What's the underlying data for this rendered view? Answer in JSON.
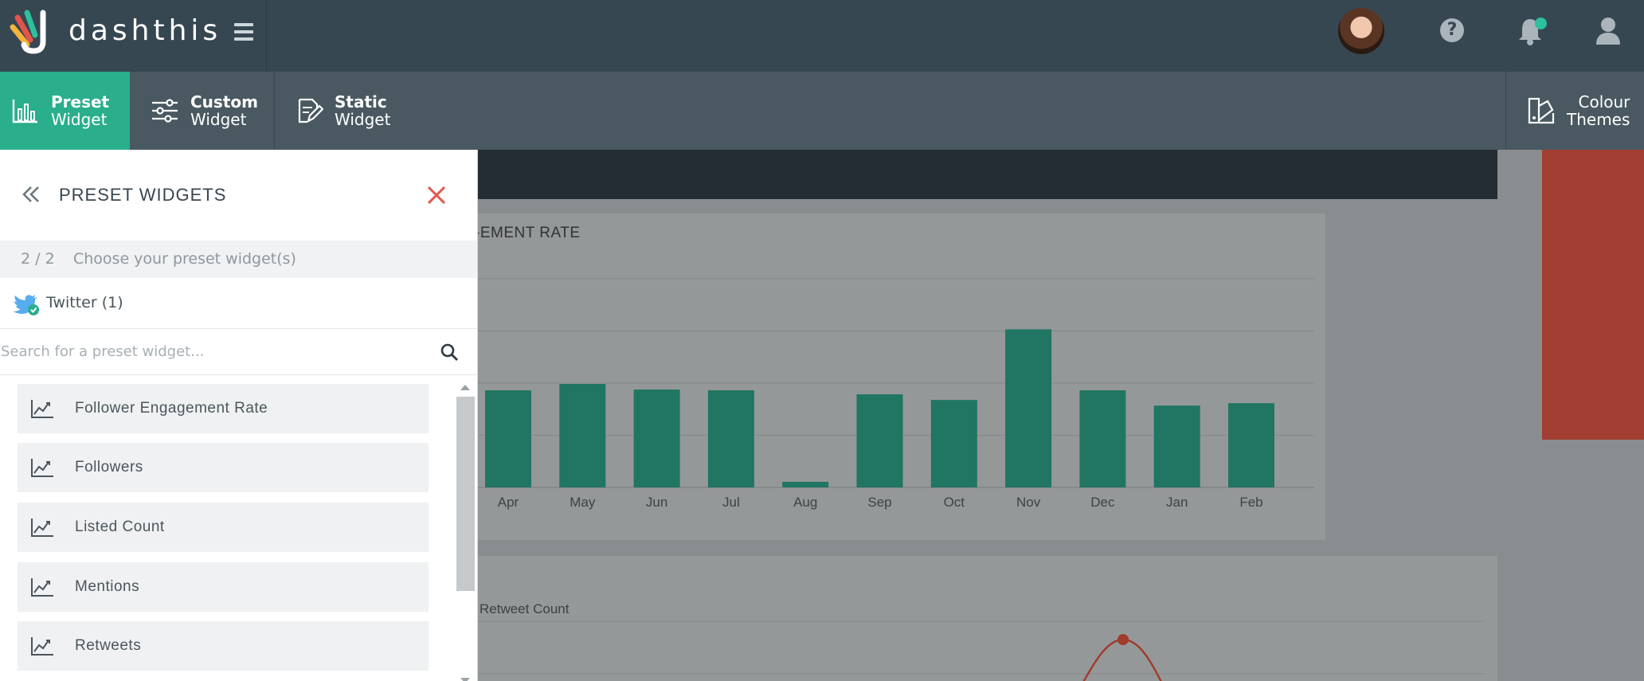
{
  "app": {
    "brand": "dashthis"
  },
  "header": {
    "avatar": "user-avatar",
    "icons": [
      "help-icon",
      "bell-icon",
      "user-icon"
    ],
    "notification_color": "#2ebf9b"
  },
  "toolbar": {
    "preset": {
      "line1": "Preset",
      "line2": "Widget"
    },
    "custom": {
      "line1": "Custom",
      "line2": "Widget"
    },
    "static": {
      "line1": "Static",
      "line2": "Widget"
    },
    "colour": {
      "line1": "Colour",
      "line2": "Themes"
    },
    "active_color": "#2aae8c"
  },
  "panel": {
    "title": "PRESET WIDGETS",
    "step_count": "2 / 2",
    "step_text": "Choose your preset widget(s)",
    "source": "Twitter (1)",
    "search_placeholder": "Search for a preset widget...",
    "items": [
      {
        "label": "Follower Engagement Rate"
      },
      {
        "label": "Followers"
      },
      {
        "label": "Listed Count"
      },
      {
        "label": "Mentions"
      },
      {
        "label": "Retweets"
      }
    ]
  },
  "dashboard": {
    "card1_title": "-EMENT RATE",
    "card2_legend": "Retweet Count"
  },
  "chart_data": [
    {
      "type": "bar",
      "title": "-EMENT RATE",
      "categories": [
        "Apr",
        "May",
        "Jun",
        "Jul",
        "Aug",
        "Sep",
        "Oct",
        "Nov",
        "Dec",
        "Jan",
        "Feb"
      ],
      "values": [
        1.21,
        1.29,
        1.22,
        1.21,
        0.07,
        1.16,
        1.09,
        1.97,
        1.21,
        1.02,
        1.05
      ],
      "ylim": [
        0,
        2.6
      ],
      "color": "#207563"
    },
    {
      "type": "line",
      "series": [
        {
          "name": "Retweet Count",
          "values": [
            0,
            0,
            0,
            0,
            0.6,
            1.0,
            0.6,
            0,
            0,
            0
          ]
        }
      ],
      "color": "#a13b2b"
    }
  ]
}
